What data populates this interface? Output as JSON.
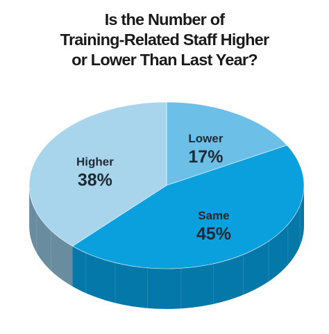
{
  "title_lines": [
    "Is the Number of",
    "Training-Related Staff Higher",
    "or Lower Than Last Year?"
  ],
  "chart_data": {
    "type": "pie",
    "title": "Is the Number of Training-Related Staff Higher or Lower Than Last Year?",
    "slices": [
      {
        "label": "Lower",
        "value": 17,
        "display": "17%",
        "color": "#6cc0e8",
        "side_color": "#3f8fb6"
      },
      {
        "label": "Same",
        "value": 45,
        "display": "45%",
        "color": "#0aa0de",
        "side_color": "#0478a8"
      },
      {
        "label": "Higher",
        "value": 38,
        "display": "38%",
        "color": "#a9d5ec",
        "side_color": "#6a8c9f"
      }
    ],
    "style": "3d"
  }
}
